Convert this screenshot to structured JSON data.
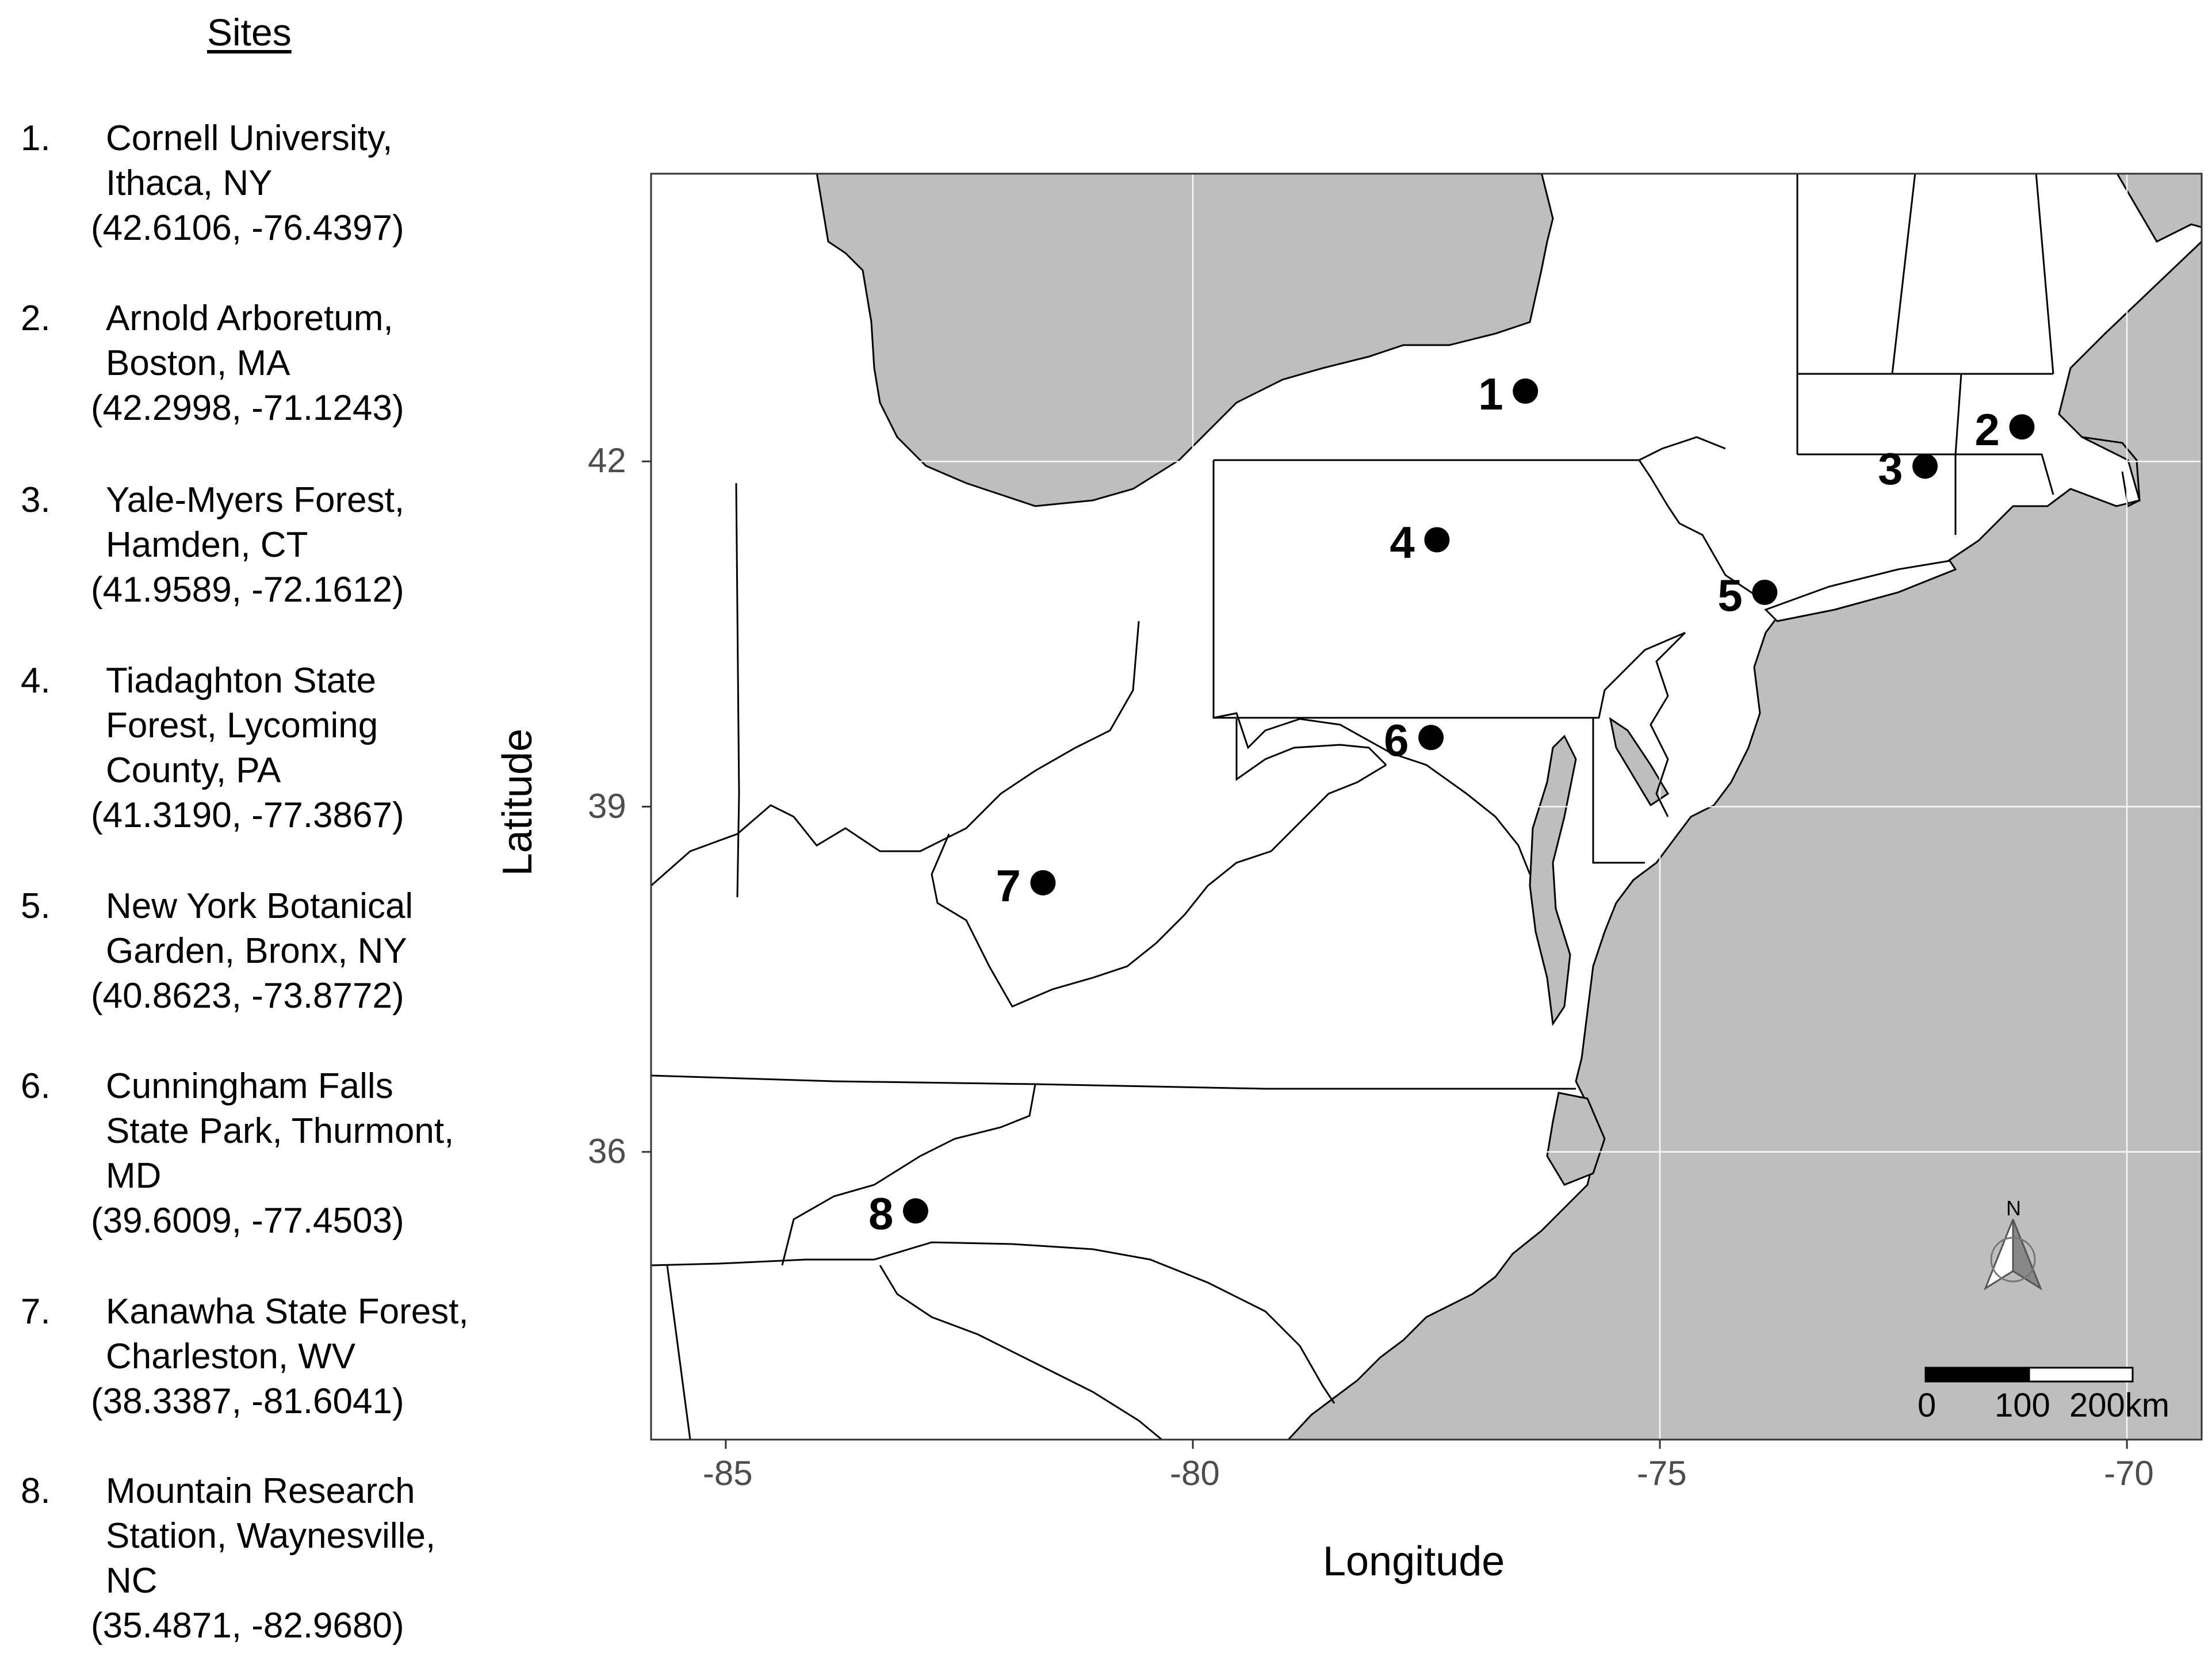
{
  "legend": {
    "title": "Sites",
    "sites": [
      {
        "num": "1.",
        "lines": [
          "Cornell University,",
          "Ithaca,  NY"
        ],
        "coord": "(42.6106, -76.4397)"
      },
      {
        "num": "2.",
        "lines": [
          "Arnold Arboretum,",
          "Boston,  MA"
        ],
        "coord": "(42.2998, -71.1243)"
      },
      {
        "num": "3.",
        "lines": [
          "Yale-Myers  Forest,",
          "Hamden,  CT"
        ],
        "coord": "(41.9589, -72.1612)"
      },
      {
        "num": "4.",
        "lines": [
          "Tiadaghton  State",
          "Forest,  Lycoming",
          "County,  PA"
        ],
        "coord": "(41.3190, -77.3867)"
      },
      {
        "num": "5.",
        "lines": [
          "New York Botanical",
          "Garden,  Bronx,  NY"
        ],
        "coord": "(40.8623, -73.8772)"
      },
      {
        "num": "6.",
        "lines": [
          "Cunningham  Falls",
          "State Park, Thurmont,",
          "MD"
        ],
        "coord": "(39.6009, -77.4503)"
      },
      {
        "num": "7.",
        "lines": [
          "Kanawha State Forest,",
          "Charleston,  WV"
        ],
        "coord": "(38.3387, -81.6041)"
      },
      {
        "num": "8.",
        "lines": [
          "Mountain  Research",
          "Station,  Waynesville,",
          "NC"
        ],
        "coord": "(35.4871, -82.9680)"
      }
    ]
  },
  "map": {
    "xlabel": "Longitude",
    "ylabel": "Latitude",
    "xlim": [
      -85.8,
      -69.2
    ],
    "ylim": [
      33.5,
      44.5
    ],
    "x_ticks": [
      -85,
      -80,
      -75,
      -70
    ],
    "x_tick_labels": [
      "-85",
      "-80",
      "-75",
      "-70"
    ],
    "y_ticks": [
      36,
      39,
      42
    ],
    "y_tick_labels": [
      "36",
      "39",
      "42"
    ],
    "colors": {
      "water": "#bebebe",
      "land": "#ffffff",
      "grid": "#ffffff",
      "border": "#000000",
      "point": "#000000"
    },
    "points": [
      {
        "label": "1",
        "lat": 42.6106,
        "lon": -76.4397
      },
      {
        "label": "2",
        "lat": 42.2998,
        "lon": -71.1243
      },
      {
        "label": "3",
        "lat": 41.9589,
        "lon": -72.1612
      },
      {
        "label": "4",
        "lat": 41.319,
        "lon": -77.3867
      },
      {
        "label": "5",
        "lat": 40.8623,
        "lon": -73.8772
      },
      {
        "label": "6",
        "lat": 39.6009,
        "lon": -77.4503
      },
      {
        "label": "7",
        "lat": 38.3387,
        "lon": -81.6041
      },
      {
        "label": "8",
        "lat": 35.4871,
        "lon": -82.968
      }
    ],
    "scale_bar": {
      "labels": [
        "0",
        "100",
        "200km"
      ]
    },
    "north_arrow": {
      "label": "N",
      "icon": "north-arrow-icon"
    }
  }
}
